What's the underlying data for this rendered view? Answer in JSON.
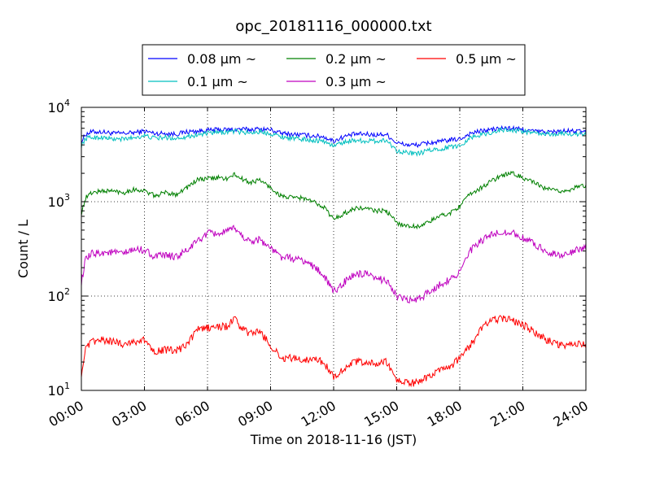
{
  "chart_data": {
    "type": "line",
    "title": "opc_20181116_000000.txt",
    "xlabel": "Time on 2018-11-16 (JST)",
    "ylabel": "Count / L",
    "y_scale": "log",
    "ylim": [
      10,
      10000
    ],
    "xlim": [
      0,
      24
    ],
    "grid": true,
    "legend_position": "top-center",
    "x_tick_labels": [
      "00:00",
      "03:00",
      "06:00",
      "09:00",
      "12:00",
      "15:00",
      "18:00",
      "21:00",
      "24:00"
    ],
    "y_tick_labels": [
      {
        "base": "10",
        "exp": "1"
      },
      {
        "base": "10",
        "exp": "2"
      },
      {
        "base": "10",
        "exp": "3"
      },
      {
        "base": "10",
        "exp": "4"
      }
    ],
    "x_hours": [
      0.0,
      0.2,
      0.5,
      1.0,
      1.5,
      2.0,
      2.5,
      3.0,
      3.5,
      4.0,
      4.5,
      5.0,
      5.5,
      6.0,
      6.5,
      7.0,
      7.3,
      7.5,
      8.0,
      8.5,
      9.0,
      9.5,
      10.0,
      10.5,
      11.0,
      11.5,
      12.0,
      12.5,
      13.0,
      13.5,
      14.0,
      14.5,
      15.0,
      15.5,
      16.0,
      16.5,
      17.0,
      17.5,
      18.0,
      18.5,
      19.0,
      19.5,
      20.0,
      20.5,
      21.0,
      21.5,
      22.0,
      22.5,
      23.0,
      23.5,
      24.0
    ],
    "series": [
      {
        "name": "0.08 μm ~",
        "color": "#0000ff",
        "values": [
          4300,
          5200,
          5500,
          5500,
          5300,
          5300,
          5400,
          5600,
          5300,
          5300,
          5200,
          5500,
          5600,
          5700,
          5800,
          5800,
          5800,
          5900,
          5800,
          5900,
          5800,
          5300,
          5200,
          5100,
          5000,
          4900,
          4400,
          4900,
          5200,
          5200,
          5100,
          5200,
          4200,
          4000,
          4000,
          4200,
          4300,
          4500,
          4600,
          5300,
          5600,
          5800,
          6000,
          6000,
          5800,
          5600,
          5500,
          5500,
          5600,
          5600,
          5500
        ]
      },
      {
        "name": "0.1 μm ~",
        "color": "#00bfbf",
        "values": [
          3900,
          4700,
          4800,
          4800,
          4600,
          4600,
          4800,
          5000,
          4700,
          4800,
          4700,
          4900,
          5100,
          5300,
          5400,
          5500,
          5600,
          5500,
          5400,
          5500,
          5300,
          4900,
          4700,
          4600,
          4500,
          4400,
          3900,
          4300,
          4500,
          4400,
          4400,
          4500,
          3500,
          3300,
          3200,
          3500,
          3600,
          3800,
          3900,
          4800,
          5100,
          5400,
          5800,
          5700,
          5600,
          5300,
          5200,
          5200,
          5300,
          5200,
          5200
        ]
      },
      {
        "name": "0.2 μm ~",
        "color": "#008000",
        "values": [
          750,
          1100,
          1250,
          1300,
          1300,
          1250,
          1350,
          1300,
          1150,
          1250,
          1200,
          1400,
          1700,
          1750,
          1800,
          1750,
          1950,
          1800,
          1600,
          1700,
          1400,
          1150,
          1100,
          1100,
          1000,
          900,
          650,
          750,
          850,
          850,
          800,
          800,
          600,
          550,
          550,
          600,
          700,
          750,
          900,
          1200,
          1400,
          1650,
          1900,
          2000,
          1800,
          1600,
          1400,
          1300,
          1300,
          1400,
          1500
        ]
      },
      {
        "name": "0.3 μm ~",
        "color": "#bf00bf",
        "values": [
          140,
          240,
          280,
          290,
          290,
          280,
          310,
          310,
          260,
          270,
          260,
          300,
          380,
          460,
          460,
          480,
          540,
          460,
          380,
          400,
          320,
          260,
          250,
          240,
          210,
          170,
          110,
          140,
          170,
          170,
          150,
          150,
          100,
          90,
          90,
          110,
          130,
          150,
          180,
          300,
          380,
          440,
          480,
          470,
          410,
          360,
          310,
          280,
          270,
          300,
          340
        ]
      },
      {
        "name": "0.5 μm ~",
        "color": "#ff0000",
        "values": [
          15,
          27,
          33,
          34,
          33,
          31,
          33,
          34,
          26,
          27,
          26,
          30,
          44,
          46,
          47,
          48,
          60,
          48,
          40,
          42,
          30,
          22,
          22,
          21,
          22,
          20,
          14,
          17,
          20,
          20,
          19,
          20,
          13,
          12,
          12,
          14,
          16,
          17,
          22,
          30,
          44,
          56,
          58,
          55,
          50,
          42,
          36,
          31,
          30,
          32,
          30
        ]
      }
    ]
  }
}
